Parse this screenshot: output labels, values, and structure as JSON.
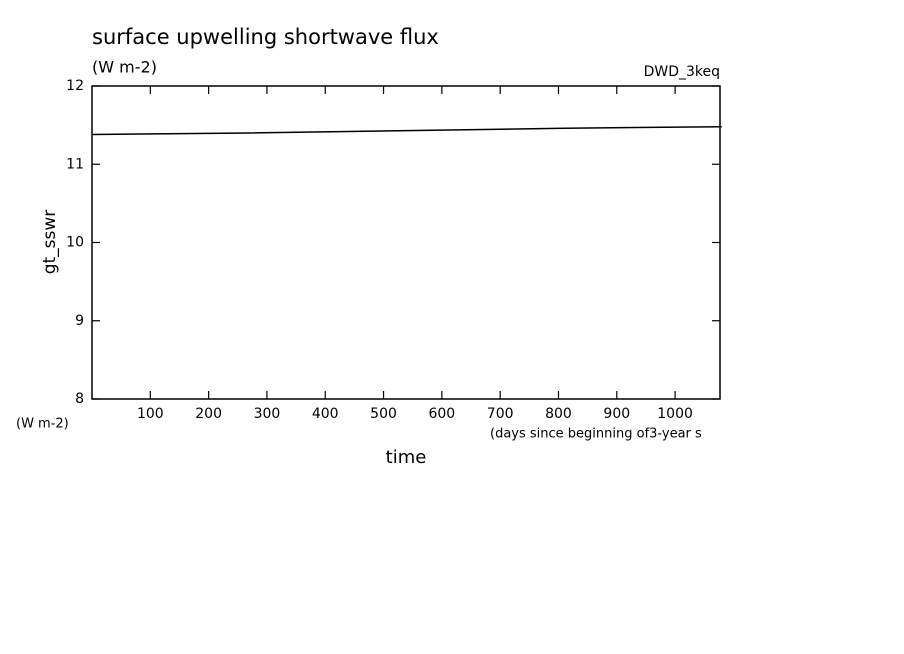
{
  "chart_data": {
    "type": "line",
    "title": "surface upwelling shortwave flux",
    "subtitle": "(W m-2)",
    "annotation": "DWD_3keq",
    "y_label": "gt_sswr",
    "y_unit": "(W m-2)",
    "x_label": "time",
    "x_unit": "(days since beginning of3-year s",
    "x": [
      0,
      270,
      540,
      810,
      1080
    ],
    "series": [
      {
        "name": "gt_sswr",
        "color": "#000000",
        "values": [
          11.38,
          11.4,
          11.43,
          11.46,
          11.48
        ]
      }
    ],
    "xlim": [
      0,
      1077
    ],
    "xticks": [
      100,
      200,
      300,
      400,
      500,
      600,
      700,
      800,
      900,
      1000
    ],
    "ylim": [
      8,
      12
    ],
    "yticks": [
      8,
      9,
      10,
      11,
      12
    ],
    "grid": false
  }
}
